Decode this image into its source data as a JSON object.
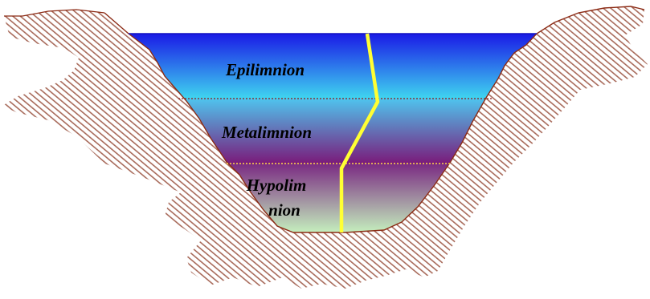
{
  "labels": {
    "epilimnion": "Epilimnion",
    "metalimnion": "Metalimnion",
    "hypolimnion_line1": "Hypolim",
    "hypolimnion_line2": "nion"
  },
  "colors": {
    "epilimnion_top": "#1a1ae6",
    "epilimnion_bottom": "#3fd6f0",
    "metalimnion_top": "#4fc4ee",
    "metalimnion_bottom": "#7a1a7a",
    "hypolimnion_top": "#7a2a82",
    "hypolimnion_bottom": "#c8f8c0",
    "rock_hatch": "#a86a5a",
    "shore_outline": "#8b2a14",
    "thermocline_epi_meta": "#8b1a1a",
    "thermocline_meta_hypo": "#ffd84a",
    "temperature_profile": "#ffff33"
  }
}
